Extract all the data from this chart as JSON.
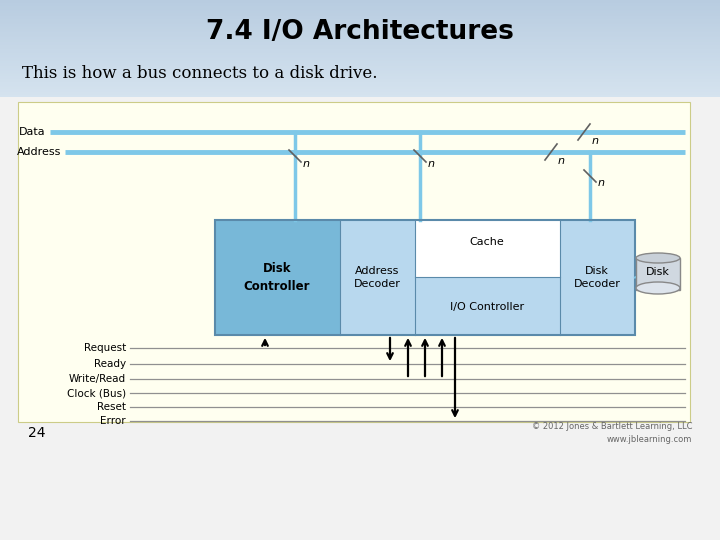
{
  "title": "7.4 I/O Architectures",
  "subtitle": "This is how a bus connects to a disk drive.",
  "page_num": "24",
  "copyright": "© 2012 Jones & Bartlett Learning, LLC\nwww.jblearning.com",
  "bg_top_color": "#c8d8e8",
  "bg_bot_color": "#f0f0f0",
  "diagram_bg": "#fffff0",
  "bus_color": "#7ec8e8",
  "box_blue_dark": "#78b8d8",
  "box_blue_light": "#b8d8ee",
  "box_white": "#ffffff",
  "box_outline": "#5a8aaa",
  "line_color": "#404040",
  "signal_color": "#909090",
  "text_color": "#000000",
  "copyright_color": "#666666"
}
